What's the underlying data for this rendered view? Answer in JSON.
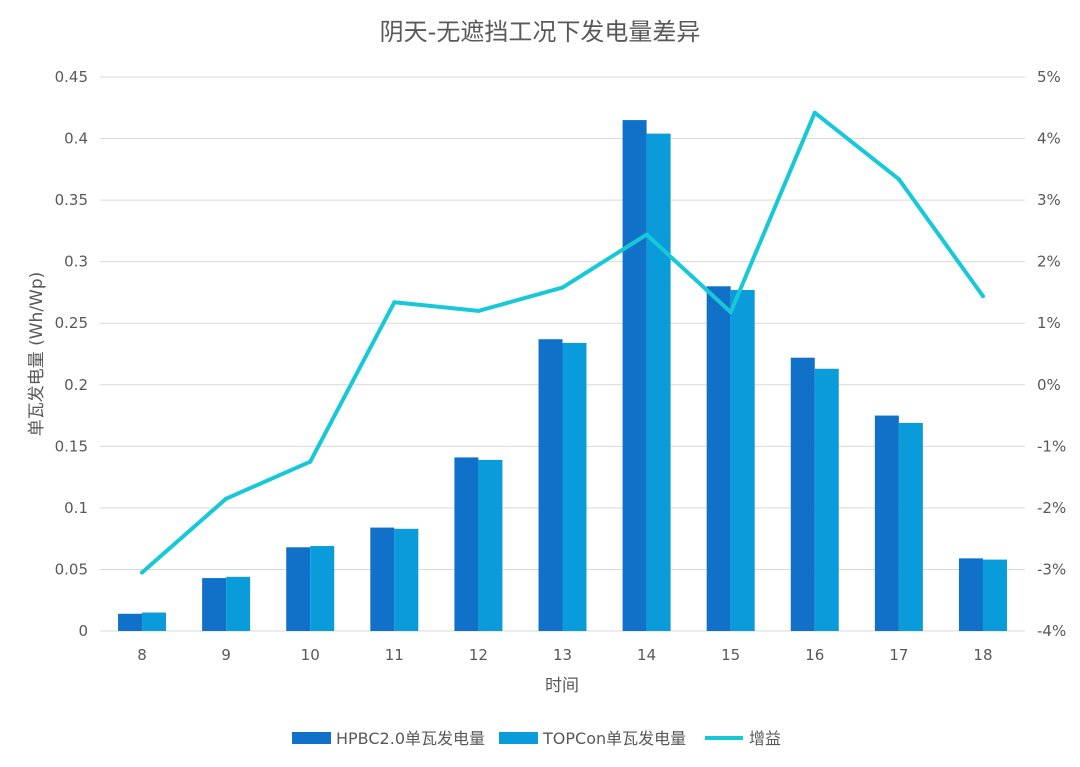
{
  "chart_data": {
    "type": "bar",
    "title": "阴天-无遮挡工况下发电量差异",
    "xlabel": "时间",
    "ylabel": "单瓦发电量 (Wh/Wp)",
    "categories": [
      "8",
      "9",
      "10",
      "11",
      "12",
      "13",
      "14",
      "15",
      "16",
      "17",
      "18"
    ],
    "ylim": [
      0,
      0.45
    ],
    "y_ticks": [
      "0",
      "0.05",
      "0.1",
      "0.15",
      "0.2",
      "0.25",
      "0.3",
      "0.35",
      "0.4",
      "0.45"
    ],
    "y2lim": [
      -0.04,
      0.05
    ],
    "y2_ticks": [
      "-4%",
      "-3%",
      "-2%",
      "-1%",
      "0%",
      "1%",
      "2%",
      "3%",
      "4%",
      "5%"
    ],
    "grid": true,
    "legend_position": "bottom",
    "series": [
      {
        "name": "HPBC2.0单瓦发电量",
        "kind": "bar",
        "axis": "left",
        "color": "#1170C8",
        "values": [
          0.014,
          0.043,
          0.068,
          0.084,
          0.141,
          0.237,
          0.415,
          0.28,
          0.222,
          0.175,
          0.059
        ]
      },
      {
        "name": "TOPCon单瓦发电量",
        "kind": "bar",
        "axis": "left",
        "color": "#0A9BDA",
        "values": [
          0.015,
          0.044,
          0.069,
          0.083,
          0.139,
          0.234,
          0.404,
          0.277,
          0.213,
          0.169,
          0.058
        ]
      },
      {
        "name": "增益",
        "kind": "line",
        "axis": "right",
        "color": "#17C9D8",
        "values": [
          -0.0305,
          -0.0185,
          -0.0125,
          0.0134,
          0.012,
          0.0158,
          0.0244,
          0.0118,
          0.0442,
          0.0334,
          0.0144
        ]
      }
    ]
  }
}
